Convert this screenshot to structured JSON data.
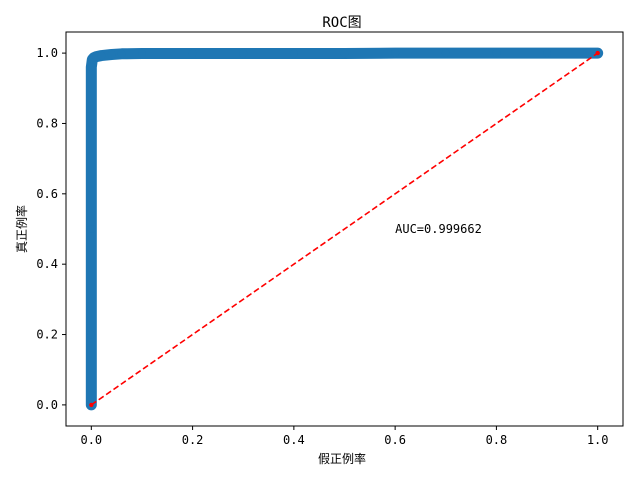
{
  "chart_data": {
    "type": "line",
    "title": "ROC图",
    "xlabel": "假正例率",
    "ylabel": "真正例率",
    "xlim": [
      -0.05,
      1.05
    ],
    "ylim": [
      -0.06,
      1.06
    ],
    "xticks": [
      0.0,
      0.2,
      0.4,
      0.6,
      0.8,
      1.0
    ],
    "yticks": [
      0.0,
      0.2,
      0.4,
      0.6,
      0.8,
      1.0
    ],
    "xtick_labels": [
      "0.0",
      "0.2",
      "0.4",
      "0.6",
      "0.8",
      "1.0"
    ],
    "ytick_labels": [
      "0.0",
      "0.2",
      "0.4",
      "0.6",
      "0.8",
      "1.0"
    ],
    "grid": false,
    "series": [
      {
        "style": "thick-line-with-markers",
        "color": "#1f77b4",
        "x": [
          0.0,
          0.0,
          0.0,
          0.0,
          0.0,
          0.002,
          0.005,
          0.01,
          0.02,
          0.04,
          0.06,
          0.1,
          0.2,
          0.3,
          0.4,
          0.5,
          0.6,
          0.7,
          0.8,
          0.9,
          1.0
        ],
        "y": [
          0.0,
          0.2,
          0.5,
          0.8,
          0.96,
          0.982,
          0.987,
          0.99,
          0.993,
          0.996,
          0.998,
          0.999,
          0.999,
          0.999,
          0.999,
          0.999,
          1.0,
          1.0,
          1.0,
          1.0,
          1.0
        ]
      },
      {
        "style": "dashed",
        "color": "#ff0000",
        "x": [
          0.0,
          1.0
        ],
        "y": [
          0.0,
          1.0
        ]
      }
    ],
    "annotations": [
      {
        "text": "AUC=0.999662",
        "x": 0.6,
        "y": 0.5
      }
    ]
  }
}
